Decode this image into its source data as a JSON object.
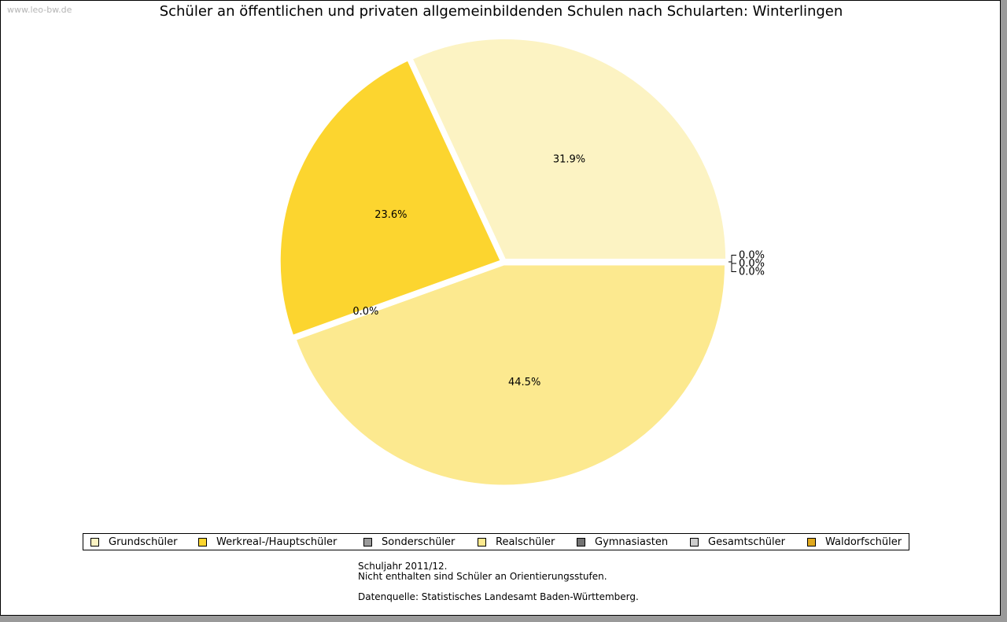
{
  "watermark": "www.leo-bw.de",
  "chart_data": {
    "type": "pie",
    "title": "Schüler an öffentlichen und privaten allgemeinbildenden Schulen nach Schularten: Winterlingen",
    "slices": [
      {
        "name": "Grundschüler",
        "value": 31.9,
        "label": "31.9%",
        "color": "#fcf3c3"
      },
      {
        "name": "Werkreal-/Hauptschüler",
        "value": 23.6,
        "label": "23.6%",
        "color": "#fcd52f"
      },
      {
        "name": "Sonderschüler",
        "value": 0.0,
        "label": "0.0%",
        "color": "#9a9a9a"
      },
      {
        "name": "Realschüler",
        "value": 44.5,
        "label": "44.5%",
        "color": "#fce98f"
      },
      {
        "name": "Gymnasiasten",
        "value": 0.0,
        "label": "0.0%",
        "color": "#737373"
      },
      {
        "name": "Gesamtschüler",
        "value": 0.0,
        "label": "0.0%",
        "color": "#cccccc"
      },
      {
        "name": "Waldorfschüler",
        "value": 0.0,
        "label": "0.0%",
        "color": "#e0a91f"
      }
    ],
    "legend_position": "bottom"
  },
  "notes": {
    "line1": "Schuljahr 2011/12.",
    "line2": "Nicht enthalten sind Schüler an Orientierungsstufen.",
    "line3": "Datenquelle: Statistisches Landesamt Baden-Württemberg."
  }
}
